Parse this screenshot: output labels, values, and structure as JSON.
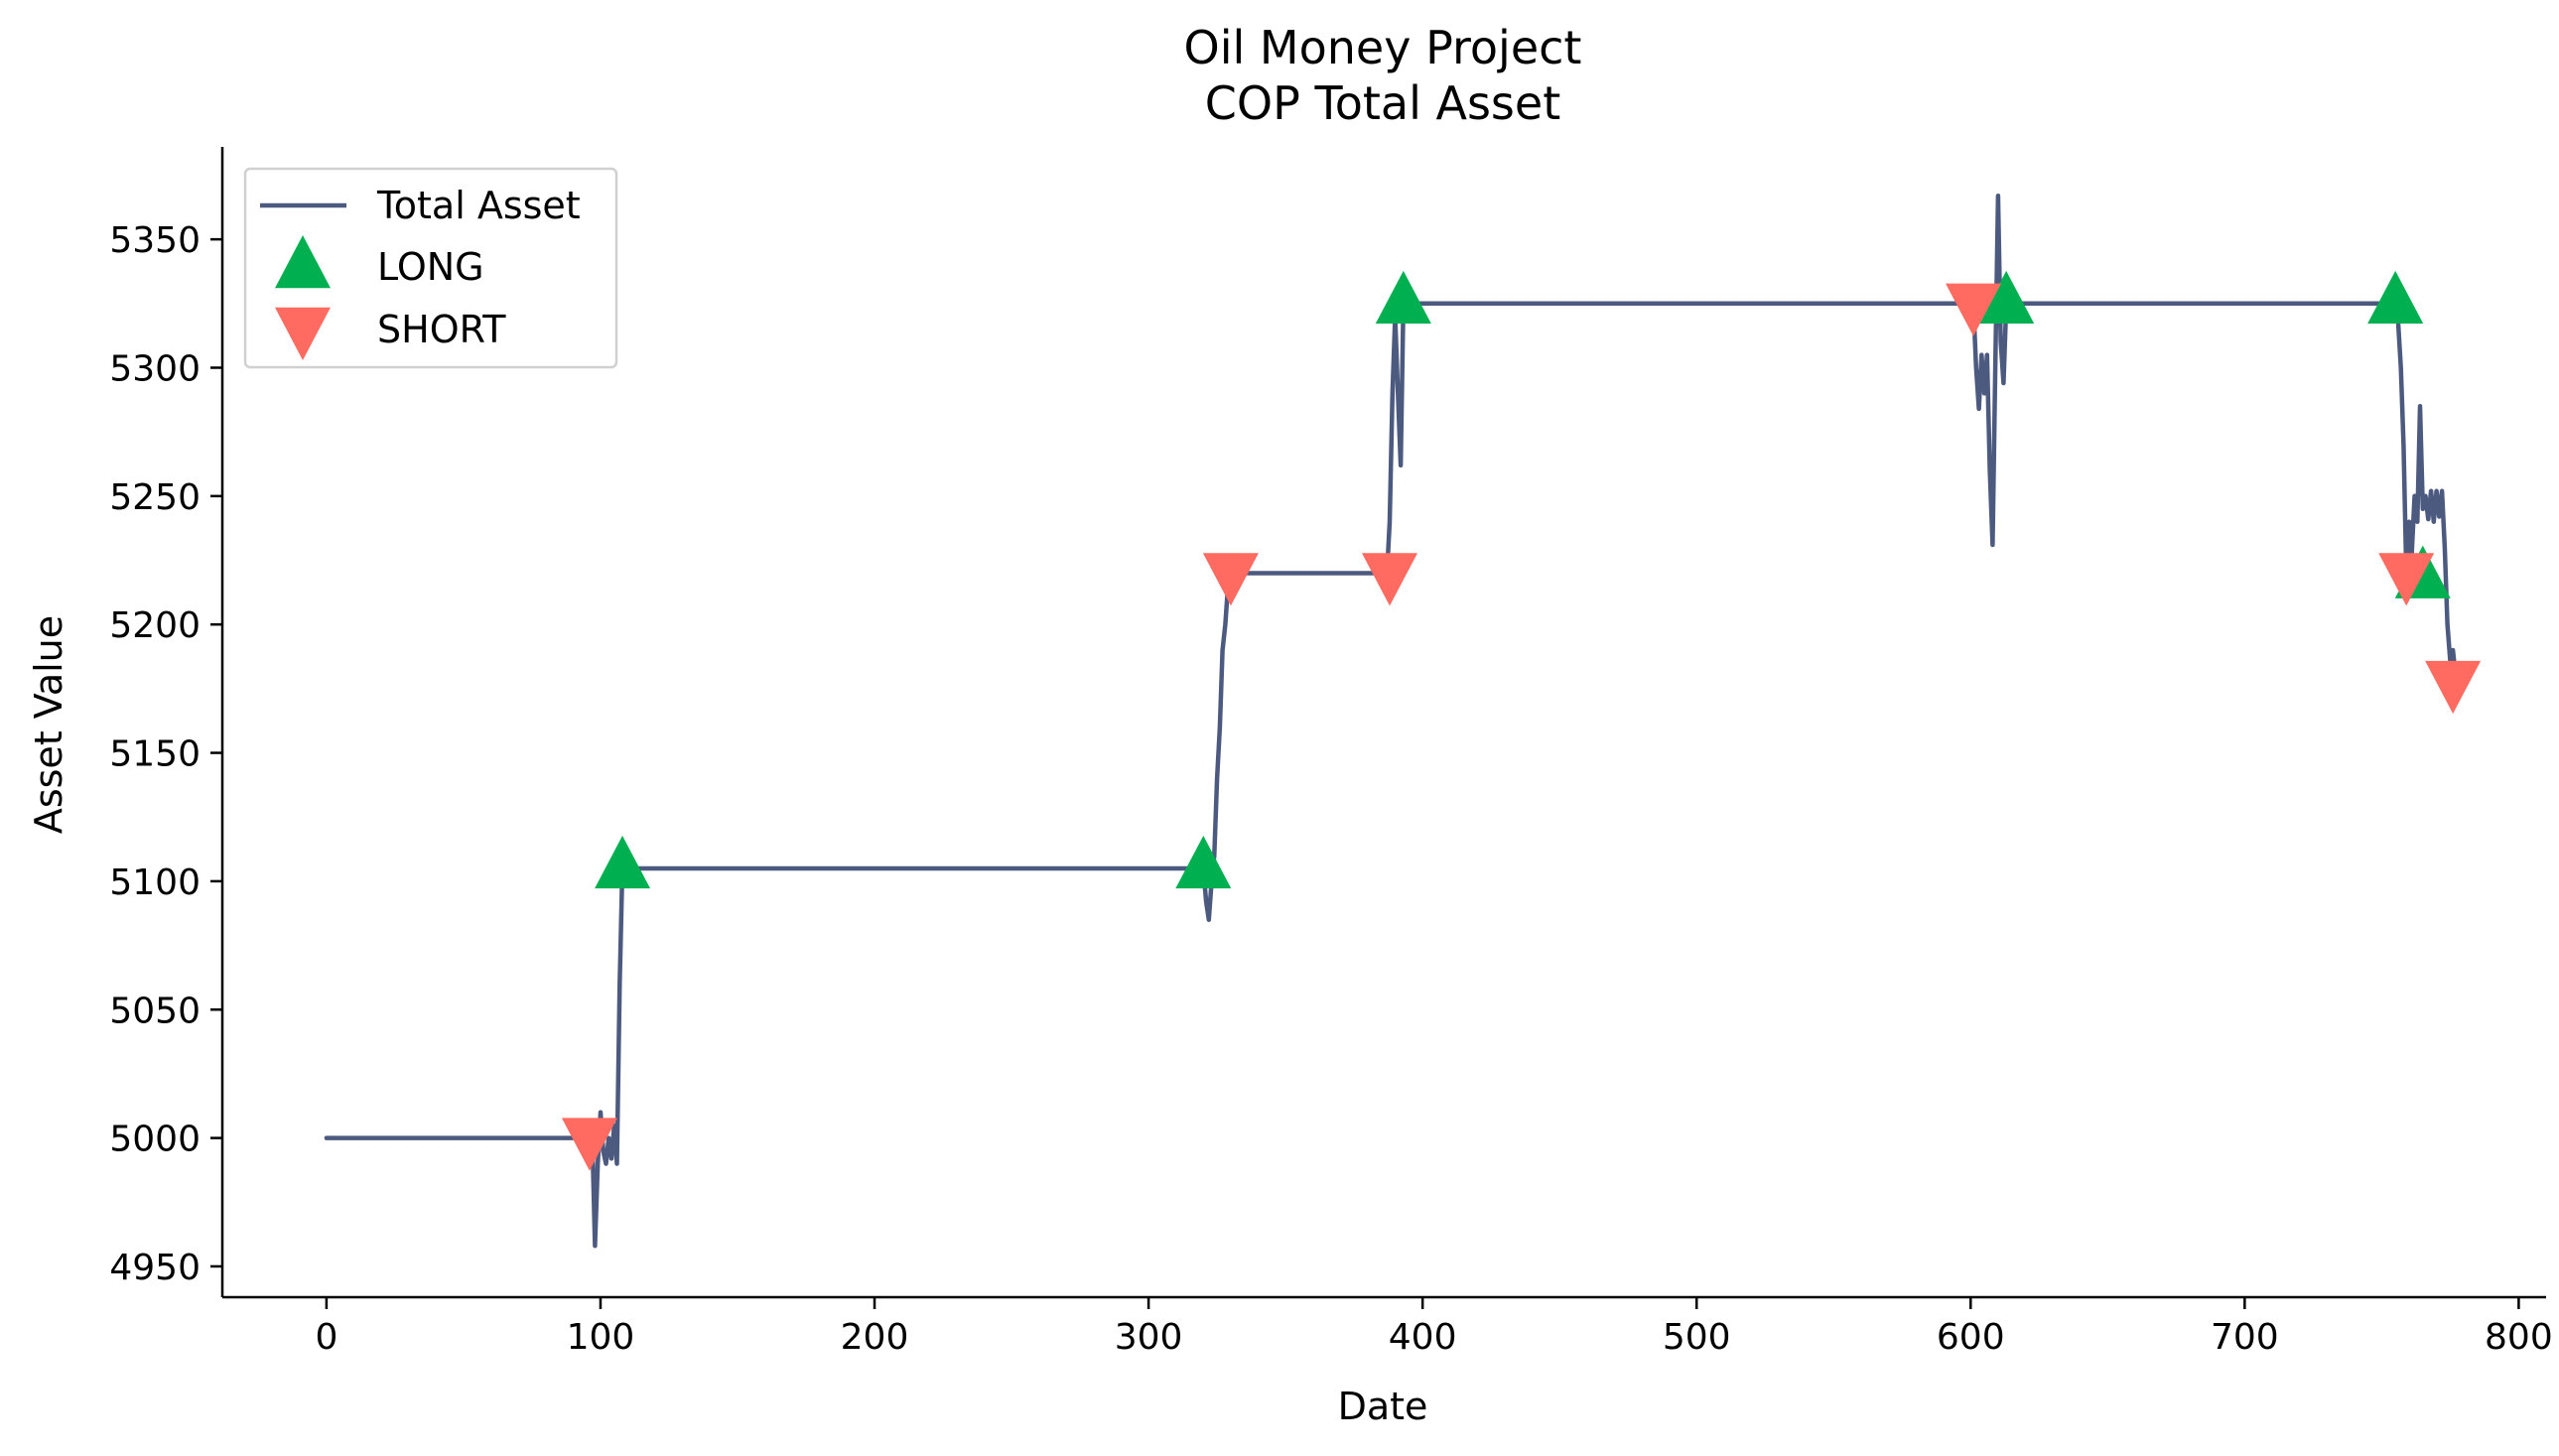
{
  "chart_data": {
    "type": "line",
    "title": "Oil Money Project",
    "subtitle": "COP Total Asset",
    "xlabel": "Date",
    "ylabel": "Asset Value",
    "xlim": [
      -38,
      810
    ],
    "ylim": [
      4938,
      5386
    ],
    "x_ticks": [
      0,
      100,
      200,
      300,
      400,
      500,
      600,
      700,
      800
    ],
    "y_ticks": [
      4950,
      5000,
      5050,
      5100,
      5150,
      5200,
      5250,
      5300,
      5350
    ],
    "grid": false,
    "legend_position": "top-left",
    "colors": {
      "total_asset": "#4d5a80",
      "long": "#00b050",
      "short": "#ff6b61"
    },
    "series": [
      {
        "name": "Total Asset",
        "kind": "line",
        "points": [
          [
            0,
            5000
          ],
          [
            96,
            5000
          ],
          [
            97,
            5000
          ],
          [
            98,
            4958
          ],
          [
            99,
            4990
          ],
          [
            100,
            5010
          ],
          [
            101,
            4995
          ],
          [
            102,
            4990
          ],
          [
            103,
            5000
          ],
          [
            104,
            4992
          ],
          [
            105,
            5005
          ],
          [
            106,
            4990
          ],
          [
            107,
            5060
          ],
          [
            108,
            5105
          ],
          [
            320,
            5105
          ],
          [
            321,
            5092
          ],
          [
            322,
            5085
          ],
          [
            323,
            5100
          ],
          [
            324,
            5110
          ],
          [
            325,
            5140
          ],
          [
            326,
            5160
          ],
          [
            327,
            5190
          ],
          [
            328,
            5200
          ],
          [
            329,
            5215
          ],
          [
            330,
            5220
          ],
          [
            387,
            5220
          ],
          [
            388,
            5240
          ],
          [
            389,
            5290
          ],
          [
            390,
            5320
          ],
          [
            391,
            5290
          ],
          [
            392,
            5262
          ],
          [
            393,
            5325
          ],
          [
            601,
            5325
          ],
          [
            602,
            5300
          ],
          [
            603,
            5284
          ],
          [
            604,
            5305
          ],
          [
            605,
            5290
          ],
          [
            606,
            5305
          ],
          [
            607,
            5260
          ],
          [
            608,
            5231
          ],
          [
            609,
            5300
          ],
          [
            610,
            5367
          ],
          [
            611,
            5310
          ],
          [
            612,
            5294
          ],
          [
            613,
            5325
          ],
          [
            755,
            5325
          ],
          [
            756,
            5318
          ],
          [
            757,
            5300
          ],
          [
            758,
            5270
          ],
          [
            759,
            5220
          ],
          [
            760,
            5240
          ],
          [
            761,
            5228
          ],
          [
            762,
            5250
          ],
          [
            763,
            5240
          ],
          [
            764,
            5285
          ],
          [
            765,
            5245
          ],
          [
            766,
            5250
          ],
          [
            767,
            5241
          ],
          [
            768,
            5252
          ],
          [
            769,
            5240
          ],
          [
            770,
            5252
          ],
          [
            771,
            5242
          ],
          [
            772,
            5252
          ],
          [
            773,
            5230
          ],
          [
            774,
            5200
          ],
          [
            775,
            5186
          ],
          [
            776,
            5190
          ],
          [
            777,
            5180
          ],
          [
            778,
            5178
          ],
          [
            781,
            5178
          ]
        ]
      },
      {
        "name": "LONG",
        "kind": "marker",
        "marker": "triangle-up",
        "points": [
          [
            108,
            5105
          ],
          [
            320,
            5105
          ],
          [
            393,
            5325
          ],
          [
            613,
            5325
          ],
          [
            755,
            5325
          ],
          [
            765,
            5218
          ]
        ]
      },
      {
        "name": "SHORT",
        "kind": "marker",
        "marker": "triangle-down",
        "points": [
          [
            96,
            5000
          ],
          [
            330,
            5220
          ],
          [
            388,
            5220
          ],
          [
            601,
            5325
          ],
          [
            759,
            5220
          ],
          [
            776,
            5178
          ]
        ]
      }
    ]
  }
}
